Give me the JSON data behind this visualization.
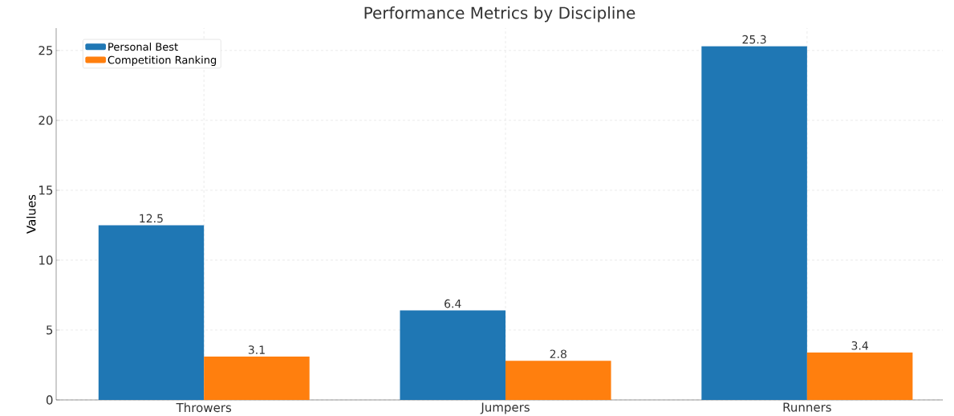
{
  "chart_data": {
    "type": "bar",
    "title": "Performance Metrics by Discipline",
    "ylabel": "Values",
    "categories": [
      "Throwers",
      "Jumpers",
      "Runners"
    ],
    "series": [
      {
        "name": "Personal Best",
        "color": "#1f77b4",
        "values": [
          12.5,
          6.4,
          25.3
        ]
      },
      {
        "name": "Competition Ranking",
        "color": "#ff7f0e",
        "values": [
          3.1,
          2.8,
          3.4
        ]
      }
    ],
    "ylim": [
      0,
      26.6
    ],
    "yticks": [
      0,
      5,
      10,
      15,
      20,
      25
    ],
    "grid": true,
    "legend": "top left",
    "data_labels": true
  }
}
